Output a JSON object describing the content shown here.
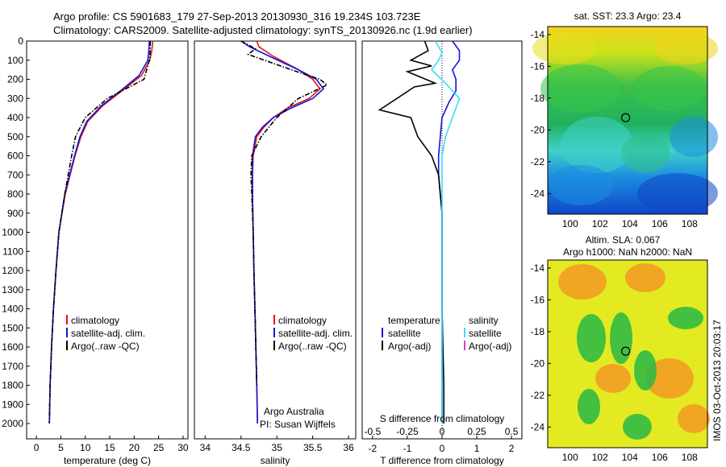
{
  "header": {
    "line1": "Argo profile: CS 5901683_179 27-Sep-2013 20130930_316 19.234S 103.723E",
    "line2": "Climatology: CARS2009. Satellite-adjusted climatology: synTS_20130926.nc (1.9d earlier)"
  },
  "colors": {
    "climatology": "#e8121b",
    "satellite": "#1414d8",
    "argo": "#000000",
    "sat_salinity": "#39dcf2",
    "argo_salinity_adj": "#d63fd6"
  },
  "chart_data": [
    {
      "type": "line",
      "panel": "temperature",
      "xlabel": "temperature (deg C)",
      "xlim": [
        -2,
        31
      ],
      "ylim": [
        2080,
        0
      ],
      "x_ticks": [
        0,
        5,
        10,
        15,
        20,
        25,
        30
      ],
      "y_ticks": [
        0,
        100,
        200,
        300,
        400,
        500,
        600,
        700,
        800,
        900,
        1000,
        1100,
        1200,
        1300,
        1400,
        1500,
        1600,
        1700,
        1800,
        1900,
        2000
      ],
      "legend": [
        "climatology",
        "satellite-adj. clim.",
        "Argo(..raw -QC)"
      ],
      "series": [
        {
          "name": "climatology",
          "color": "climatology",
          "style": "solid",
          "x": [
            23.8,
            23.6,
            23.2,
            21.5,
            17.5,
            13.5,
            10.5,
            9.1,
            7.9,
            6.9,
            5.9,
            4.6,
            4.0,
            3.5,
            3.1,
            2.8,
            2.65
          ],
          "y": [
            0,
            50,
            100,
            180,
            260,
            340,
            420,
            500,
            600,
            700,
            800,
            1000,
            1200,
            1400,
            1600,
            1800,
            2000
          ]
        },
        {
          "name": "satellite-adj. clim.",
          "color": "satellite",
          "style": "solid",
          "x": [
            23.1,
            23.0,
            22.8,
            21.0,
            17.2,
            13.2,
            10.3,
            8.9,
            7.8,
            6.8,
            5.8,
            4.6,
            4.0,
            3.5,
            3.1,
            2.8,
            2.65
          ],
          "y": [
            0,
            50,
            100,
            180,
            260,
            340,
            420,
            500,
            600,
            700,
            800,
            1000,
            1200,
            1400,
            1600,
            1800,
            2000
          ]
        },
        {
          "name": "Argo(..raw -QC)",
          "color": "argo",
          "style": "dashdot",
          "x": [
            23.3,
            23.3,
            23.1,
            22.0,
            14.5,
            10.0,
            8.0,
            7.2,
            6.5,
            5.8,
            4.6,
            4.0,
            3.5,
            3.1,
            2.8,
            2.65
          ],
          "y": [
            0,
            50,
            100,
            200,
            300,
            400,
            500,
            600,
            700,
            800,
            1000,
            1200,
            1400,
            1600,
            1800,
            2000
          ]
        }
      ]
    },
    {
      "type": "line",
      "panel": "salinity",
      "xlabel": "salinity",
      "xlim": [
        33.85,
        36.1
      ],
      "ylim": [
        2080,
        0
      ],
      "x_ticks": [
        34,
        34.5,
        35,
        35.5,
        36
      ],
      "legend": [
        "climatology",
        "satellite-adj. clim.",
        "Argo(..raw -QC)"
      ],
      "annotation": [
        "Argo Australia",
        "PI: Susan Wijffels"
      ],
      "series": [
        {
          "name": "climatology",
          "color": "climatology",
          "style": "solid",
          "x": [
            34.72,
            34.75,
            34.95,
            35.3,
            35.5,
            35.6,
            35.45,
            35.15,
            34.95,
            34.82,
            34.72,
            34.67,
            34.66,
            34.66,
            34.67,
            34.68,
            34.7,
            34.72,
            34.73
          ],
          "y": [
            0,
            30,
            80,
            150,
            200,
            250,
            300,
            350,
            400,
            450,
            500,
            600,
            700,
            800,
            1000,
            1200,
            1500,
            1800,
            2000
          ]
        },
        {
          "name": "satellite-adj. clim.",
          "color": "satellite",
          "style": "solid",
          "x": [
            34.5,
            34.62,
            34.9,
            35.3,
            35.55,
            35.65,
            35.5,
            35.2,
            34.95,
            34.8,
            34.7,
            34.66,
            34.66,
            34.66,
            34.67,
            34.68,
            34.7,
            34.72,
            34.73
          ],
          "y": [
            0,
            30,
            80,
            150,
            200,
            250,
            300,
            350,
            400,
            450,
            500,
            600,
            700,
            800,
            1000,
            1200,
            1500,
            1800,
            2000
          ]
        },
        {
          "name": "Argo(..raw -QC)",
          "color": "argo",
          "style": "dashdot",
          "x": [
            34.5,
            34.7,
            34.6,
            35.2,
            35.6,
            35.7,
            35.3,
            35.0,
            34.78,
            34.65,
            34.64,
            34.65,
            34.67,
            34.68,
            34.7,
            34.72
          ],
          "y": [
            0,
            40,
            70,
            150,
            200,
            230,
            300,
            400,
            500,
            600,
            700,
            800,
            1000,
            1200,
            1500,
            1800
          ]
        }
      ]
    },
    {
      "type": "line",
      "panel": "difference",
      "xlabel_top": "S difference from climatology",
      "xlabel": "T difference from climatology",
      "xlim": [
        -2.3,
        2.3
      ],
      "ylim": [
        2080,
        0
      ],
      "x_ticks_T": [
        -2,
        -1,
        0,
        1,
        2
      ],
      "x_ticks_S": [
        -0.5,
        -0.25,
        0,
        0.25,
        0.5
      ],
      "legend_temperature": {
        "heading": "temperature",
        "entries": [
          "satellite",
          "Argo(-adj)"
        ]
      },
      "legend_salinity": {
        "heading": "salinity",
        "entries": [
          "satellite",
          "Argo(-adj)"
        ]
      },
      "series": [
        {
          "name": "temperature satellite",
          "color": "satellite",
          "style": "solid",
          "x": [
            0.3,
            0.5,
            0.5,
            0.3,
            0.4,
            0.4,
            0.2,
            0.0,
            -0.05,
            -0.1,
            -0.1,
            -0.05,
            0.0,
            0.0,
            0.0,
            0.0,
            0.0
          ],
          "y": [
            0,
            50,
            100,
            150,
            200,
            260,
            320,
            400,
            500,
            600,
            700,
            800,
            900,
            1000,
            1300,
            1700,
            2000
          ]
        },
        {
          "name": "temperature Argo(-adj)",
          "color": "argo",
          "style": "solid",
          "x": [
            -0.5,
            -0.4,
            -0.9,
            -0.3,
            -1.0,
            -0.2,
            -0.8,
            -1.8,
            -0.9,
            -0.7,
            -0.3,
            -0.1,
            -0.05,
            0.0,
            0.0,
            0.0,
            0.05,
            0.05
          ],
          "y": [
            0,
            50,
            100,
            130,
            160,
            220,
            240,
            360,
            400,
            500,
            600,
            700,
            800,
            900,
            1100,
            1400,
            1800,
            2000
          ]
        },
        {
          "name": "salinity satellite",
          "color": "sat_salinity",
          "style": "solid",
          "x": [
            -0.2,
            0.0,
            -0.1,
            -0.3,
            0.1,
            0.5,
            0.3,
            0.1,
            0.0,
            0.0,
            0.0,
            0.0,
            0.0,
            0.0,
            0.0,
            0.0
          ],
          "y": [
            0,
            60,
            100,
            150,
            220,
            300,
            400,
            500,
            600,
            700,
            800,
            1000,
            1300,
            1600,
            1800,
            2000
          ]
        }
      ]
    },
    {
      "type": "heatmap",
      "panel": "sst_map",
      "title": "sat. SST: 23.3  Argo: 23.4",
      "xlim": [
        98.5,
        109.2
      ],
      "ylim": [
        -25.3,
        -13.5
      ],
      "x_ticks": [
        100,
        102,
        104,
        106,
        108
      ],
      "y_ticks": [
        -14,
        -16,
        -18,
        -20,
        -22,
        -24
      ],
      "marker": {
        "lon": 103.72,
        "lat": -19.23
      }
    },
    {
      "type": "heatmap",
      "panel": "sla_map",
      "title_lines": [
        "Altim. SLA: 0.067",
        "Argo h1000: NaN h2000: NaN"
      ],
      "xlim": [
        98.5,
        109.2
      ],
      "ylim": [
        -25.3,
        -13.5
      ],
      "x_ticks": [
        100,
        102,
        104,
        106,
        108
      ],
      "y_ticks": [
        -14,
        -16,
        -18,
        -20,
        -22,
        -24
      ],
      "marker": {
        "lon": 103.72,
        "lat": -19.23
      }
    }
  ],
  "footer": {
    "imos_stamp": "IMOS 03-Oct-2013 20:03:17"
  }
}
